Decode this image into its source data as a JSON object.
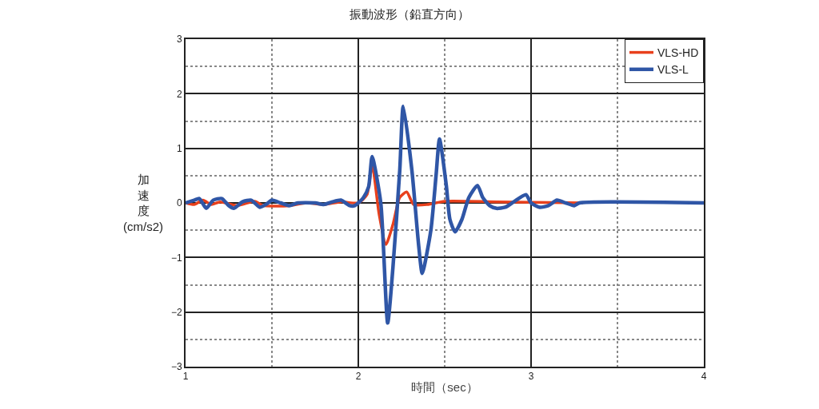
{
  "chart_data": {
    "type": "line",
    "title": "振動波形（鉛直方向）",
    "xlabel": "時間（sec）",
    "ylabel": "加速度(cm/s2)",
    "xlim": [
      1,
      4
    ],
    "xticks": [
      1,
      {
        "value": 1.5,
        "label": null
      },
      2,
      {
        "value": 2.5,
        "label": null
      },
      3,
      {
        "value": 3.5,
        "label": null
      },
      4
    ],
    "ylim": [
      -3,
      3
    ],
    "yticks": [
      -3,
      {
        "value": -2.5,
        "label": null
      },
      -2,
      {
        "value": -1.5,
        "label": null
      },
      -1,
      {
        "value": -0.5,
        "label": null
      },
      0,
      {
        "value": 0.5,
        "label": null
      },
      1,
      {
        "value": 1.5,
        "label": null
      },
      2,
      {
        "value": 2.5,
        "label": null
      },
      3
    ],
    "grid": true,
    "legend": "top right",
    "line_style": "solid",
    "marker": "none",
    "series": [
      {
        "name": "VLS-HD",
        "color": "#e8401c",
        "x": [
          1,
          1.05,
          1.1,
          1.15,
          1.2,
          1.3,
          1.4,
          1.45,
          1.6,
          1.7,
          1.8,
          1.9,
          2,
          2.05,
          2.08,
          2.12,
          2.16,
          2.2,
          2.24,
          2.28,
          2.32,
          2.4,
          2.5,
          2.8,
          3.3
        ],
        "values": [
          0,
          -0.03,
          0.05,
          -0.03,
          0.02,
          -0.05,
          0.03,
          -0.05,
          -0.05,
          0,
          -0.03,
          0.02,
          0,
          0.15,
          0.7,
          -0.2,
          -0.76,
          -0.4,
          0.1,
          0.2,
          -0.03,
          -0.03,
          0.03,
          0.02,
          0
        ]
      },
      {
        "name": "VLS-L",
        "color": "#2f56a6",
        "x": [
          1,
          1.05,
          1.08,
          1.12,
          1.16,
          1.21,
          1.25,
          1.28,
          1.33,
          1.38,
          1.43,
          1.47,
          1.5,
          1.55,
          1.6,
          1.65,
          1.75,
          1.8,
          1.85,
          1.9,
          1.95,
          1.98,
          2,
          2.03,
          2.06,
          2.08,
          2.13,
          2.17,
          2.2,
          2.24,
          2.26,
          2.31,
          2.35,
          2.37,
          2.42,
          2.45,
          2.47,
          2.51,
          2.53,
          2.56,
          2.6,
          2.64,
          2.69,
          2.72,
          2.76,
          2.8,
          2.85,
          2.9,
          2.97,
          3,
          3.05,
          3.1,
          3.15,
          3.2,
          3.25,
          3.28,
          4
        ],
        "values": [
          0,
          0.05,
          0.08,
          -0.1,
          0.05,
          0.08,
          -0.05,
          -0.1,
          0.02,
          0.05,
          -0.08,
          -0.02,
          0.05,
          0,
          -0.05,
          0,
          0,
          -0.03,
          0.02,
          0.05,
          -0.05,
          -0.05,
          0,
          0.1,
          0.3,
          0.85,
          0,
          -2.2,
          -1.2,
          0.6,
          1.77,
          0.6,
          -0.8,
          -1.29,
          -0.5,
          0.5,
          1.17,
          0.3,
          -0.3,
          -0.53,
          -0.3,
          0.1,
          0.32,
          0.1,
          -0.05,
          -0.1,
          -0.08,
          0.02,
          0.15,
          0,
          -0.08,
          -0.05,
          0.05,
          0,
          -0.05,
          0,
          0
        ]
      }
    ]
  }
}
